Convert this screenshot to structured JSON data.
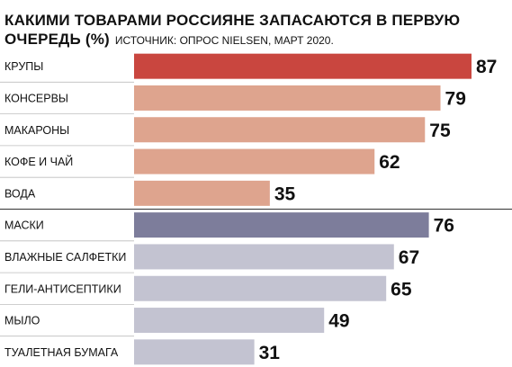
{
  "title_line1": "КАКИМИ ТОВАРАМИ РОССИЯНЕ ЗАПАСАЮТСЯ В ПЕРВУЮ",
  "title_line2": "ОЧЕРЕДЬ (%)",
  "source": "ИСТОЧНИК: ОПРОС NIELSEN, МАРТ 2020.",
  "chart_data": {
    "type": "bar",
    "orientation": "horizontal",
    "categories": [
      "КРУПЫ",
      "КОНСЕРВЫ",
      "МАКАРОНЫ",
      "КОФЕ И ЧАЙ",
      "ВОДА",
      "МАСКИ",
      "ВЛАЖНЫЕ САЛФЕТКИ",
      "ГЕЛИ-АНТИСЕПТИКИ",
      "МЫЛО",
      "ТУАЛЕТНАЯ БУМАГА"
    ],
    "values": [
      87,
      79,
      75,
      62,
      35,
      76,
      67,
      65,
      49,
      31
    ],
    "groups": [
      {
        "items": [
          0,
          1,
          2,
          3,
          4
        ],
        "highlight_color": "#c9463f",
        "color": "#dea48e"
      },
      {
        "items": [
          5,
          6,
          7,
          8,
          9
        ],
        "highlight_color": "#7d7d9b",
        "color": "#c3c3d1"
      }
    ],
    "xlim": [
      0,
      87
    ]
  }
}
